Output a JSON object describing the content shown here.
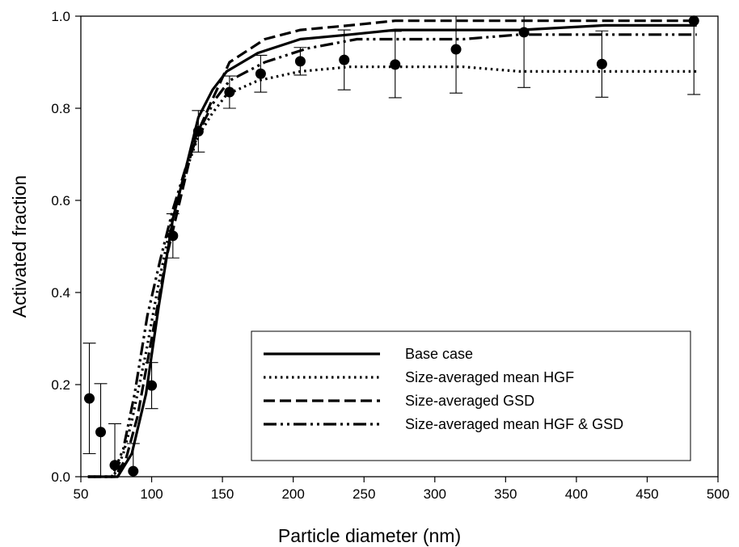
{
  "chart_data": {
    "type": "line",
    "xlabel": "Particle diameter (nm)",
    "ylabel": "Activated fraction",
    "xlim": [
      50,
      500
    ],
    "ylim": [
      0,
      1.0
    ],
    "xticks": [
      50,
      100,
      150,
      200,
      250,
      300,
      350,
      400,
      450,
      500
    ],
    "yticks": [
      0.0,
      0.2,
      0.4,
      0.6,
      0.8,
      1.0
    ],
    "ytick_labels": [
      "0.0",
      "0.2",
      "0.4",
      "0.6",
      "0.8",
      "1.0"
    ],
    "grid": false,
    "legend_position": "lower-right",
    "series": [
      {
        "name": "Base case",
        "style": "solid",
        "x": [
          55,
          76,
          86,
          96,
          105,
          115,
          125,
          133,
          143,
          153,
          175,
          205,
          240,
          272,
          320,
          360,
          420,
          485
        ],
        "y": [
          0.0,
          0.0,
          0.05,
          0.18,
          0.37,
          0.56,
          0.68,
          0.78,
          0.84,
          0.88,
          0.92,
          0.95,
          0.96,
          0.97,
          0.97,
          0.97,
          0.98,
          0.98
        ]
      },
      {
        "name": "Size-averaged mean HGF",
        "style": "dotted",
        "x": [
          55,
          73,
          80,
          86,
          96,
          105,
          115,
          125,
          133,
          143,
          153,
          175,
          205,
          240,
          272,
          320,
          360,
          420,
          485
        ],
        "y": [
          0.0,
          0.0,
          0.05,
          0.12,
          0.27,
          0.42,
          0.57,
          0.67,
          0.74,
          0.79,
          0.83,
          0.86,
          0.88,
          0.89,
          0.89,
          0.89,
          0.88,
          0.88,
          0.88
        ]
      },
      {
        "name": "Size-averaged GSD",
        "style": "dashed",
        "x": [
          55,
          74,
          82,
          90,
          100,
          110,
          120,
          130,
          143,
          155,
          180,
          205,
          240,
          272,
          320,
          360,
          420,
          485
        ],
        "y": [
          0.0,
          0.0,
          0.04,
          0.13,
          0.3,
          0.47,
          0.6,
          0.73,
          0.82,
          0.9,
          0.95,
          0.97,
          0.98,
          0.99,
          0.99,
          0.99,
          0.99,
          0.99
        ]
      },
      {
        "name": "Size-averaged mean HGF & GSD",
        "style": "dashdotdot",
        "x": [
          55,
          72,
          80,
          88,
          97,
          106,
          115,
          125,
          135,
          145,
          155,
          180,
          210,
          245,
          272,
          320,
          360,
          420,
          485
        ],
        "y": [
          0.0,
          0.0,
          0.06,
          0.18,
          0.35,
          0.47,
          0.58,
          0.68,
          0.76,
          0.82,
          0.86,
          0.9,
          0.93,
          0.95,
          0.95,
          0.95,
          0.96,
          0.96,
          0.96
        ]
      }
    ],
    "measured": {
      "x": [
        56,
        64,
        74,
        87,
        100,
        115,
        133,
        155,
        177,
        205,
        236,
        272,
        315,
        363,
        418,
        483
      ],
      "y": [
        0.17,
        0.097,
        0.025,
        0.012,
        0.198,
        0.523,
        0.75,
        0.835,
        0.875,
        0.902,
        0.905,
        0.895,
        0.928,
        0.965,
        0.896,
        0.99
      ],
      "err": [
        0.12,
        0.105,
        0.09,
        0.06,
        0.05,
        0.048,
        0.045,
        0.035,
        0.04,
        0.03,
        0.065,
        0.072,
        0.095,
        0.12,
        0.072,
        0.16
      ]
    }
  }
}
